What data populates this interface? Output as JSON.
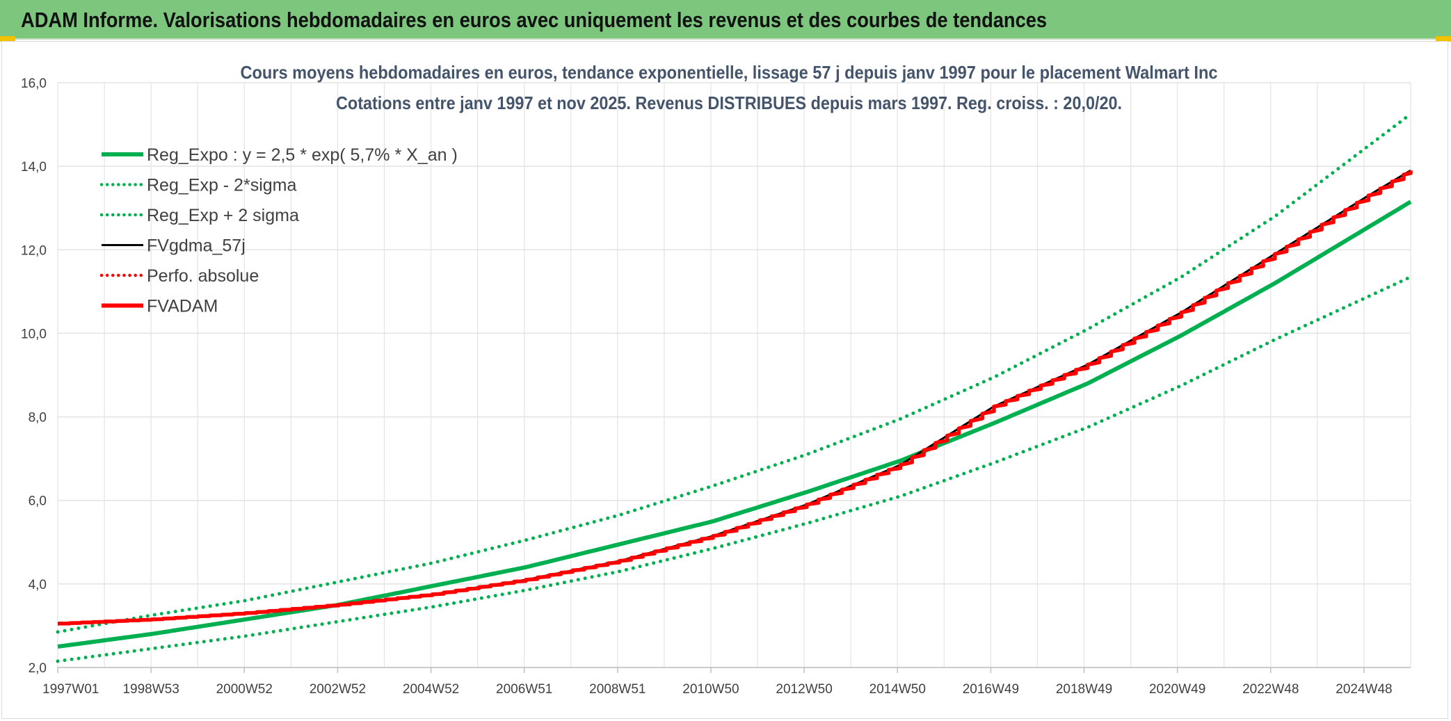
{
  "header": {
    "title": "ADAM Informe. Valorisations hebdomadaires en euros avec uniquement les revenus et des courbes de tendances"
  },
  "colors": {
    "banner": "#7dc67e",
    "trend_green": "#00b050",
    "fv_red": "#ff0000",
    "fv_black": "#000000",
    "grid": "#e3e3e3"
  },
  "chart_data": {
    "type": "line",
    "title_lines": [
      "Cours moyens hebdomadaires en euros, tendance exponentielle, lissage 57 j depuis janv 1997 pour le placement Walmart Inc",
      "Cotations entre janv 1997 et nov 2025. Revenus DISTRIBUES depuis mars 1997. Reg. croiss. : 20,0/20."
    ],
    "ylim": [
      2,
      16
    ],
    "yticks": [
      2,
      4,
      6,
      8,
      10,
      12,
      14,
      16
    ],
    "ytick_labels": [
      "2,0",
      "4,0",
      "6,0",
      "8,0",
      "10,0",
      "12,0",
      "14,0",
      "16,0"
    ],
    "xlim": [
      1997.0,
      2025.9
    ],
    "xtick_labels": [
      "1997W01",
      "1998W53",
      "2000W52",
      "2002W52",
      "2004W52",
      "2006W51",
      "2008W51",
      "2010W50",
      "2012W50",
      "2014W50",
      "2016W49",
      "2018W49",
      "2020W49",
      "2022W48",
      "2024W48"
    ],
    "grid": true,
    "legend_position": "top-left",
    "series": [
      {
        "name": "Reg_Expo : y = 2,5 * exp( 5,7% *  X_an )",
        "style": "solid-thick",
        "color": "#00b050",
        "x": [
          1997,
          1999,
          2001,
          2003,
          2005,
          2007,
          2009,
          2011,
          2013,
          2015,
          2017,
          2019,
          2021,
          2023,
          2025.9
        ],
        "y": [
          2.5,
          2.8,
          3.15,
          3.5,
          3.95,
          4.4,
          4.95,
          5.5,
          6.2,
          6.95,
          7.85,
          8.8,
          9.95,
          11.2,
          13.15
        ]
      },
      {
        "name": "Reg_Exp - 2*sigma",
        "style": "dotted",
        "color": "#00b050",
        "x": [
          1997,
          1999,
          2001,
          2003,
          2005,
          2007,
          2009,
          2011,
          2013,
          2015,
          2017,
          2019,
          2021,
          2023,
          2025.9
        ],
        "y": [
          2.15,
          2.45,
          2.75,
          3.1,
          3.45,
          3.85,
          4.3,
          4.85,
          5.45,
          6.1,
          6.9,
          7.75,
          8.75,
          9.85,
          11.35
        ]
      },
      {
        "name": "Reg_Exp + 2 sigma",
        "style": "dotted",
        "color": "#00b050",
        "x": [
          1997,
          1999,
          2001,
          2003,
          2005,
          2007,
          2009,
          2011,
          2013,
          2015,
          2017,
          2019,
          2021,
          2023,
          2025.9
        ],
        "y": [
          2.85,
          3.25,
          3.6,
          4.05,
          4.5,
          5.05,
          5.65,
          6.35,
          7.1,
          7.95,
          8.95,
          10.1,
          11.35,
          12.8,
          15.25
        ]
      },
      {
        "name": "FVgdma_57j",
        "style": "solid-thin",
        "color": "#000000",
        "x": [
          1997,
          1999,
          2001,
          2003,
          2005,
          2007,
          2009,
          2011,
          2013,
          2015,
          2016,
          2017,
          2019,
          2021,
          2023,
          2025,
          2025.9
        ],
        "y": [
          3.05,
          3.15,
          3.3,
          3.5,
          3.75,
          4.1,
          4.55,
          5.15,
          5.9,
          6.85,
          7.55,
          8.25,
          9.25,
          10.5,
          11.9,
          13.3,
          13.9
        ]
      },
      {
        "name": "Perfo. absolue",
        "style": "dotted",
        "color": "#ff0000",
        "x": [],
        "y": []
      },
      {
        "name": "FVADAM",
        "style": "stepped-thick",
        "color": "#ff0000",
        "x": [
          1997,
          1999,
          2001,
          2003,
          2005,
          2007,
          2009,
          2011,
          2013,
          2015,
          2016,
          2017,
          2019,
          2021,
          2023,
          2025,
          2025.9
        ],
        "y": [
          3.05,
          3.15,
          3.3,
          3.5,
          3.75,
          4.1,
          4.55,
          5.15,
          5.9,
          6.85,
          7.55,
          8.25,
          9.25,
          10.5,
          11.9,
          13.3,
          13.9
        ]
      }
    ]
  }
}
